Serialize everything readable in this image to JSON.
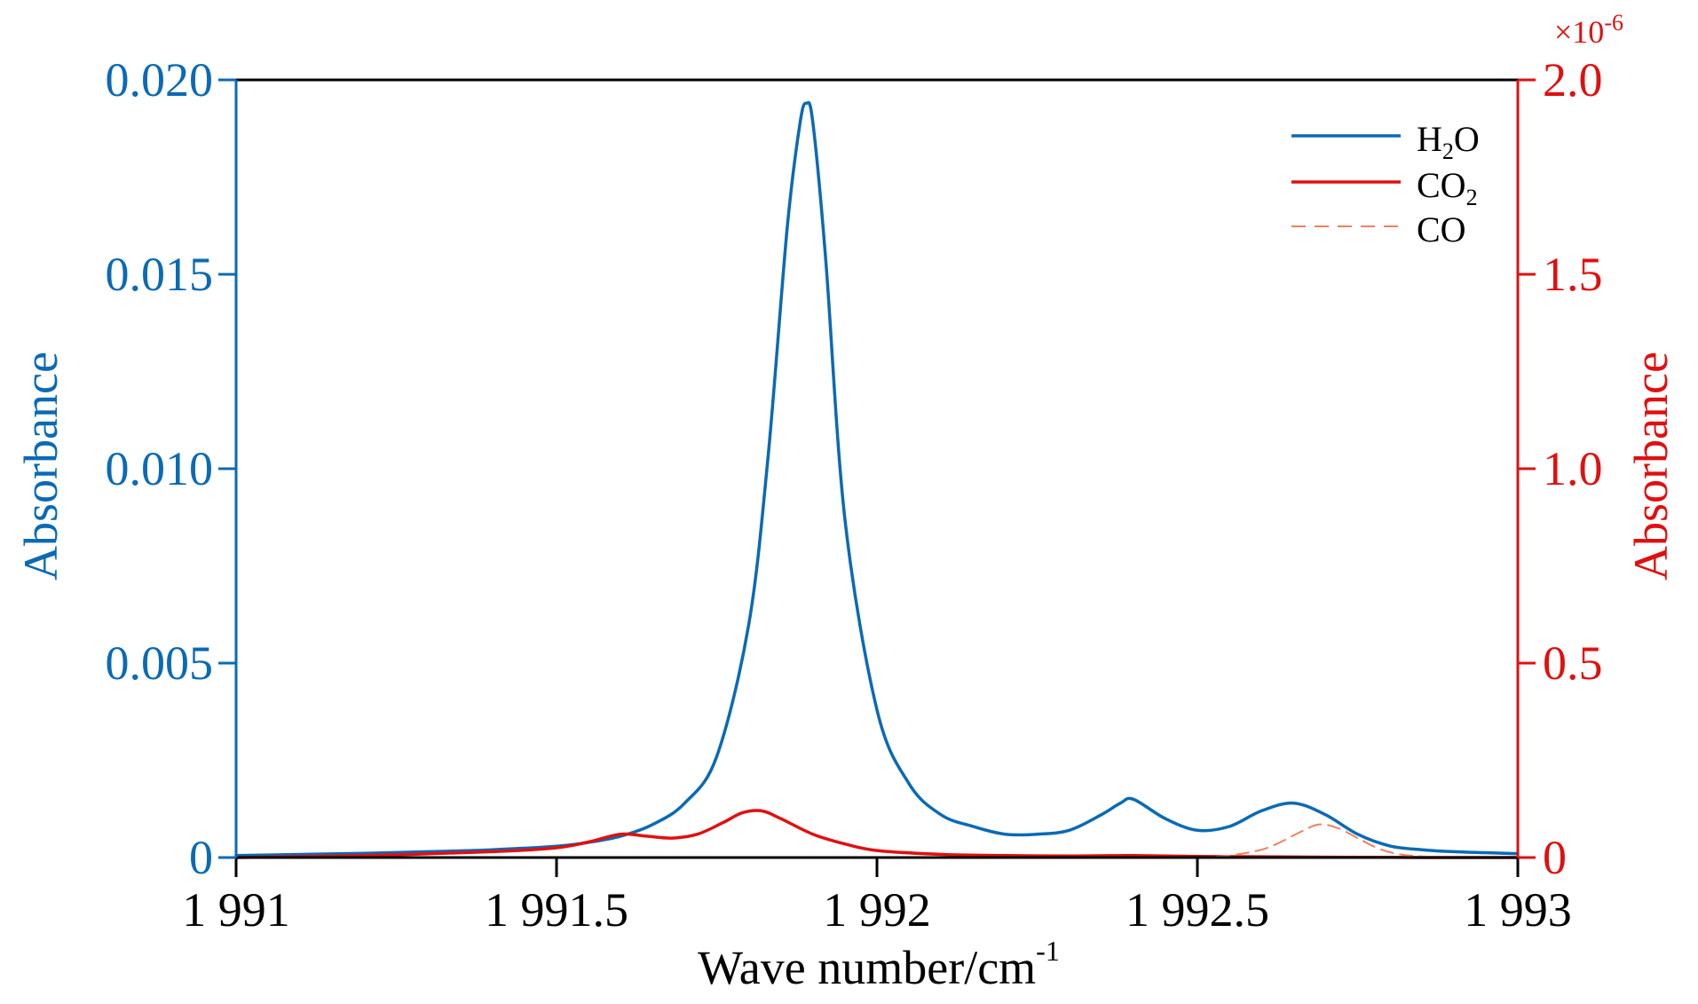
{
  "chart_data": {
    "type": "line",
    "xlabel": "Wave number/cm",
    "xlabel_sup": "-1",
    "x_ticks": [
      "1 991",
      "1 991.5",
      "1 992",
      "1 992.5",
      "1 993"
    ],
    "x_tick_values": [
      1991,
      1991.5,
      1992,
      1992.5,
      1993
    ],
    "xlim": [
      1991,
      1993
    ],
    "left_axis": {
      "label": "Absorbance",
      "color": "#0a6ab5",
      "ylim": [
        0,
        0.02
      ],
      "ticks": [
        "0",
        "0.005",
        "0.010",
        "0.015",
        "0.020"
      ],
      "tick_values": [
        0,
        0.005,
        0.01,
        0.015,
        0.02
      ]
    },
    "right_axis": {
      "label": "Absorbance",
      "color": "#e01010",
      "ylim": [
        0,
        2.0
      ],
      "ticks": [
        "0",
        "0.5",
        "1.0",
        "1.5",
        "2.0"
      ],
      "tick_values": [
        0,
        0.5,
        1.0,
        1.5,
        2.0
      ],
      "multiplier": "×10",
      "multiplier_exp": "-6"
    },
    "legend_position": "top-right",
    "series": [
      {
        "name": "H2O",
        "name_main": "H",
        "name_sub": "2",
        "name_tail": "O",
        "axis": "left",
        "color": "#0a6ab5",
        "dash": "solid",
        "x": [
          1991.0,
          1991.1,
          1991.2,
          1991.3,
          1991.4,
          1991.5,
          1991.55,
          1991.6,
          1991.65,
          1991.7,
          1991.75,
          1991.8,
          1991.83,
          1991.86,
          1991.88,
          1991.89,
          1991.9,
          1991.92,
          1991.95,
          1992.0,
          1992.05,
          1992.1,
          1992.15,
          1992.2,
          1992.25,
          1992.3,
          1992.35,
          1992.38,
          1992.4,
          1992.45,
          1992.5,
          1992.55,
          1992.6,
          1992.65,
          1992.7,
          1992.75,
          1992.8,
          1992.85,
          1992.9,
          1993.0
        ],
        "y": [
          5e-05,
          8e-05,
          0.00011,
          0.00015,
          0.0002,
          0.00029,
          0.00039,
          0.00055,
          0.00085,
          0.0014,
          0.0026,
          0.006,
          0.0103,
          0.0162,
          0.0189,
          0.0194,
          0.0189,
          0.0154,
          0.0087,
          0.0038,
          0.0019,
          0.0011,
          0.0008,
          0.0006,
          0.0006,
          0.0007,
          0.0011,
          0.0014,
          0.0015,
          0.001,
          0.0007,
          0.0008,
          0.0012,
          0.0014,
          0.0011,
          0.0006,
          0.0003,
          0.0002,
          0.00015,
          0.0001
        ]
      },
      {
        "name": "CO2",
        "name_main": "CO",
        "name_sub": "2",
        "name_tail": "",
        "axis": "right",
        "color": "#e01010",
        "dash": "solid",
        "x": [
          1991.0,
          1991.2,
          1991.4,
          1991.5,
          1991.55,
          1991.6,
          1991.64,
          1991.68,
          1991.72,
          1991.76,
          1991.79,
          1991.82,
          1991.85,
          1991.9,
          1991.95,
          1992.0,
          1992.1,
          1992.2,
          1992.3,
          1992.4,
          1992.5,
          1992.6,
          1992.7,
          1992.8,
          1992.9,
          1993.0
        ],
        "y": [
          0.0,
          0.005,
          0.015,
          0.025,
          0.04,
          0.06,
          0.055,
          0.05,
          0.06,
          0.09,
          0.115,
          0.12,
          0.1,
          0.06,
          0.035,
          0.018,
          0.008,
          0.005,
          0.004,
          0.005,
          0.003,
          0.002,
          0.001,
          0.0005,
          0.0,
          0.0
        ]
      },
      {
        "name": "CO",
        "name_main": "CO",
        "name_sub": "",
        "name_tail": "",
        "axis": "right",
        "color": "#f08060",
        "dash": "dashed",
        "x": [
          1992.5,
          1992.55,
          1992.6,
          1992.63,
          1992.66,
          1992.69,
          1992.72,
          1992.75,
          1992.78,
          1992.81,
          1992.85,
          1992.9
        ],
        "y": [
          0.0,
          0.005,
          0.02,
          0.04,
          0.065,
          0.085,
          0.075,
          0.05,
          0.025,
          0.01,
          0.003,
          0.0
        ]
      }
    ]
  }
}
